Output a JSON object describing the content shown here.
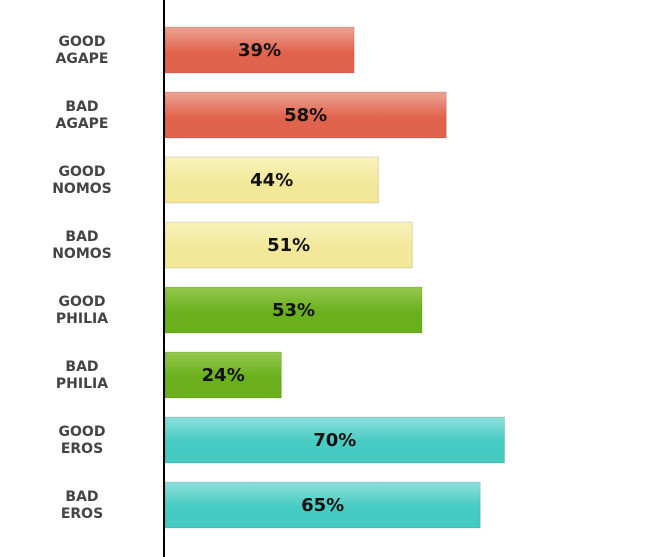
{
  "chart_data": {
    "type": "bar",
    "orientation": "horizontal",
    "categories": [
      [
        "GOOD",
        "AGAPE"
      ],
      [
        "BAD",
        "AGAPE"
      ],
      [
        "GOOD",
        "NOMOS"
      ],
      [
        "BAD",
        "NOMOS"
      ],
      [
        "GOOD",
        "PHILIA"
      ],
      [
        "BAD",
        "PHILIA"
      ],
      [
        "GOOD",
        "EROS"
      ],
      [
        "BAD",
        "EROS"
      ]
    ],
    "values": [
      39,
      58,
      44,
      51,
      53,
      24,
      70,
      65
    ],
    "value_labels": [
      "39%",
      "58%",
      "44%",
      "51%",
      "53%",
      "24%",
      "70%",
      "65%"
    ],
    "bar_colors": [
      [
        "#eda494",
        "#e0634d"
      ],
      [
        "#eda494",
        "#e0634d"
      ],
      [
        "#f8f3bc",
        "#f3e89a"
      ],
      [
        "#f8f3bc",
        "#f3e89a"
      ],
      [
        "#95c84e",
        "#6ab01c"
      ],
      [
        "#95c84e",
        "#6ab01c"
      ],
      [
        "#8ee0da",
        "#45cbc2"
      ],
      [
        "#8ee0da",
        "#45cbc2"
      ]
    ],
    "xlim": [
      0,
      100
    ],
    "grid": false,
    "legend": "none",
    "title": "",
    "xlabel": "",
    "ylabel": ""
  }
}
